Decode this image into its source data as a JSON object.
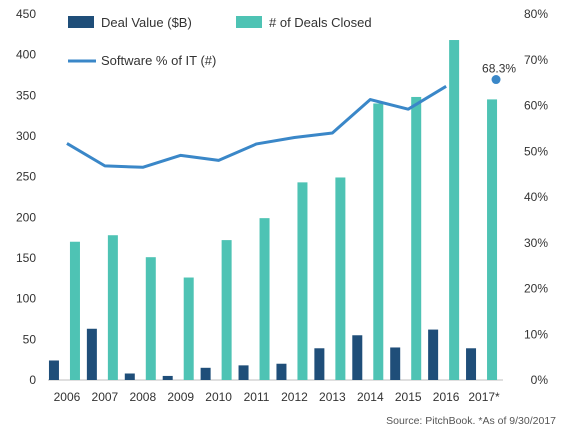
{
  "chart_data": {
    "type": "bar",
    "categories": [
      "2006",
      "2007",
      "2008",
      "2009",
      "2010",
      "2011",
      "2012",
      "2013",
      "2014",
      "2015",
      "2016",
      "2017*"
    ],
    "series": [
      {
        "name": "Deal Value ($B)",
        "type": "bar",
        "axis": "left",
        "color": "#1f4e79",
        "values": [
          24,
          63,
          8,
          5,
          15,
          18,
          20,
          39,
          55,
          40,
          62,
          39
        ]
      },
      {
        "name": "# of Deals Closed",
        "type": "bar",
        "axis": "left",
        "color": "#4ec3b4",
        "values": [
          170,
          178,
          151,
          126,
          172,
          199,
          243,
          249,
          340,
          348,
          418,
          345
        ]
      },
      {
        "name": "Software % of IT (#)",
        "type": "line",
        "axis": "right",
        "color": "#3a87c8",
        "values": [
          51.7,
          46.8,
          46.5,
          49.1,
          48.0,
          51.6,
          53.0,
          54.0,
          61.3,
          59.2,
          64.2,
          null
        ],
        "marker": {
          "category": "2017*",
          "value": 68.3,
          "label": "68.3%"
        }
      }
    ],
    "yaxis_left": {
      "ticks": [
        "0",
        "50",
        "100",
        "150",
        "200",
        "250",
        "300",
        "350",
        "400",
        "450"
      ],
      "range": [
        0,
        450
      ]
    },
    "yaxis_right": {
      "ticks": [
        "0%",
        "10%",
        "20%",
        "30%",
        "40%",
        "50%",
        "60%",
        "70%",
        "80%"
      ],
      "range": [
        0,
        80
      ]
    },
    "grid": false,
    "legend_position": "top-left",
    "source": "Source: PitchBook. *As of 9/30/2017"
  }
}
